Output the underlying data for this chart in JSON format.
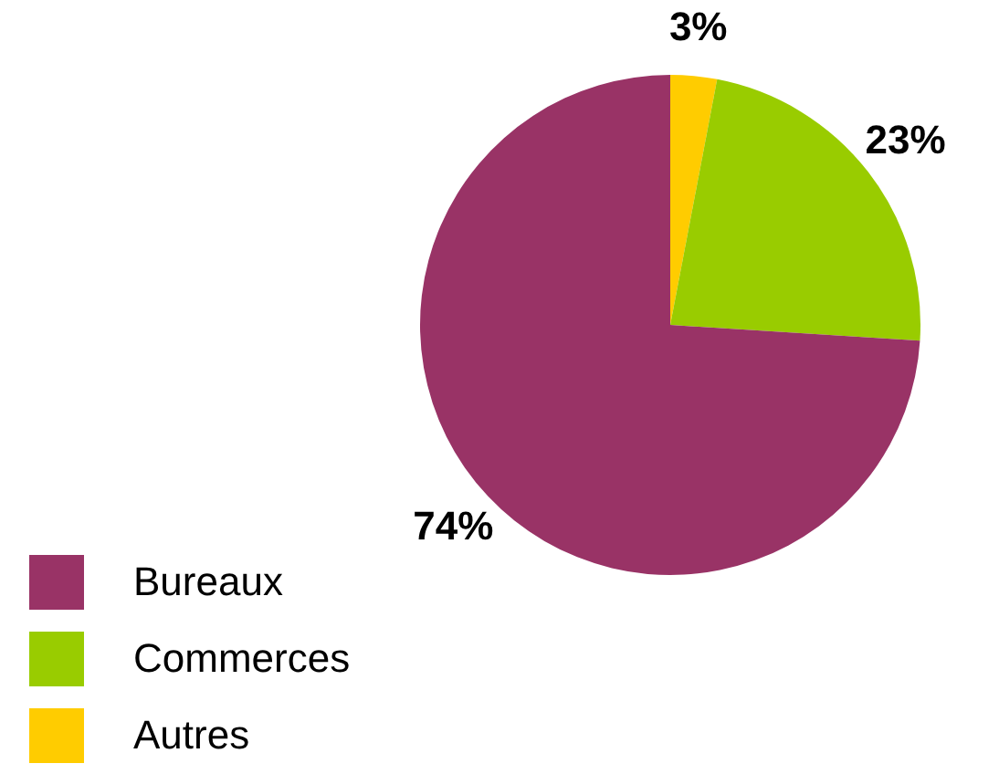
{
  "chart_data": {
    "type": "pie",
    "categories": [
      "Bureaux",
      "Commerces",
      "Autres"
    ],
    "values": [
      74,
      23,
      3
    ],
    "colors": [
      "#993366",
      "#99cc00",
      "#ffcc00"
    ],
    "value_labels": [
      "74%",
      "23%",
      "3%"
    ],
    "legend": "bottom left"
  }
}
